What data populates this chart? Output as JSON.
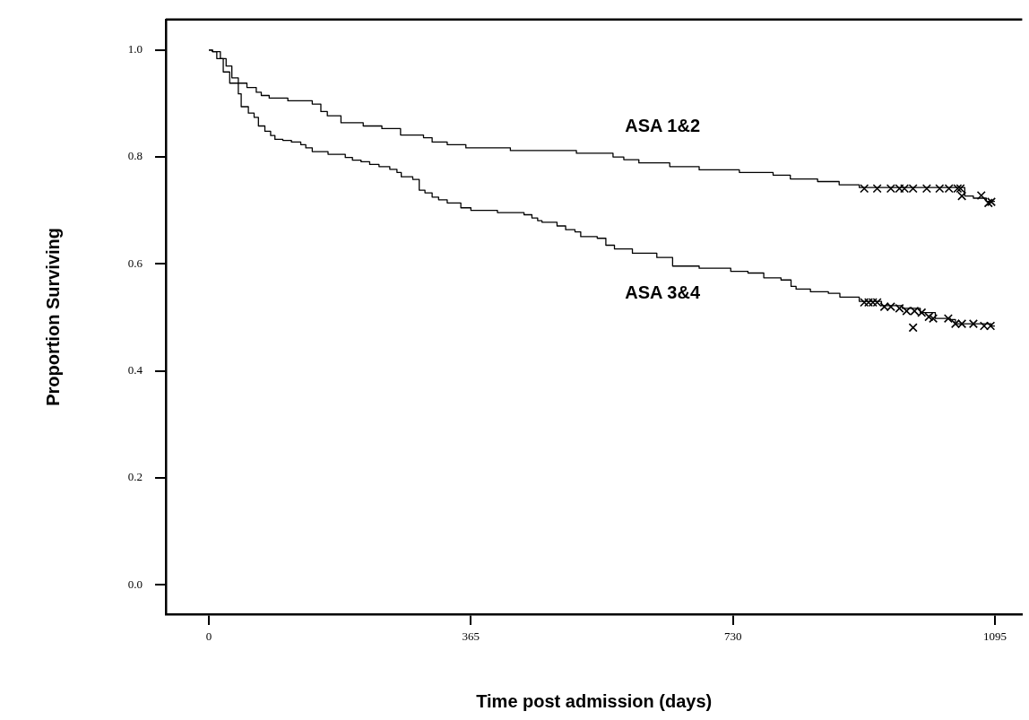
{
  "chart_data": {
    "type": "step",
    "xlabel": "Time post admission (days)",
    "ylabel": "Proportion Surviving",
    "xlim": [
      -60,
      1133
    ],
    "ylim": [
      -0.055,
      1.057
    ],
    "xticks": [
      0,
      365,
      730,
      1095
    ],
    "yticks": [
      {
        "value": 0,
        "label": "0.0"
      },
      {
        "value": 0.2,
        "label": "0.2"
      },
      {
        "value": 0.4,
        "label": "0.4"
      },
      {
        "value": 0.6,
        "label": "0.6"
      },
      {
        "value": 0.8,
        "label": "0.8"
      },
      {
        "value": 1,
        "label": "1.0"
      }
    ],
    "legend": false,
    "series": [
      {
        "name": "ASA 1&2",
        "color": "#000000",
        "x": [
          0,
          5,
          16,
          24,
          32,
          41,
          53,
          66,
          73,
          84,
          110,
          144,
          156,
          165,
          184,
          215,
          241,
          267,
          299,
          311,
          332,
          358,
          420,
          512,
          563,
          578,
          599,
          642,
          683,
          739,
          786,
          810,
          848,
          878,
          906,
          1053,
          1065,
          1083,
          1095
        ],
        "values": [
          1,
          0.997,
          0.984,
          0.97,
          0.948,
          0.938,
          0.93,
          0.921,
          0.915,
          0.91,
          0.905,
          0.899,
          0.885,
          0.877,
          0.864,
          0.858,
          0.853,
          0.841,
          0.836,
          0.828,
          0.823,
          0.817,
          0.812,
          0.807,
          0.8,
          0.795,
          0.789,
          0.782,
          0.776,
          0.771,
          0.766,
          0.759,
          0.754,
          0.748,
          0.743,
          0.727,
          0.723,
          0.717,
          0.717
        ]
      },
      {
        "name": "ASA 3&4",
        "color": "#000000",
        "x": [
          0,
          5,
          11,
          20,
          29,
          41,
          45,
          55,
          63,
          69,
          78,
          86,
          92,
          103,
          115,
          128,
          135,
          144,
          166,
          190,
          200,
          212,
          224,
          237,
          252,
          262,
          268,
          284,
          293,
          301,
          311,
          320,
          332,
          351,
          365,
          402,
          439,
          450,
          458,
          464,
          485,
          497,
          510,
          518,
          541,
          553,
          565,
          590,
          624,
          646,
          683,
          727,
          751,
          773,
          797,
          811,
          818,
          838,
          863,
          879,
          906,
          937,
          966,
          991,
          1012,
          1033,
          1040,
          1090,
          1095
        ],
        "values": [
          1,
          0.997,
          0.984,
          0.959,
          0.938,
          0.918,
          0.894,
          0.882,
          0.874,
          0.858,
          0.848,
          0.84,
          0.833,
          0.831,
          0.828,
          0.823,
          0.817,
          0.81,
          0.805,
          0.799,
          0.794,
          0.791,
          0.786,
          0.782,
          0.777,
          0.771,
          0.763,
          0.758,
          0.738,
          0.733,
          0.725,
          0.72,
          0.714,
          0.705,
          0.7,
          0.696,
          0.692,
          0.686,
          0.681,
          0.678,
          0.671,
          0.664,
          0.66,
          0.651,
          0.648,
          0.635,
          0.628,
          0.62,
          0.612,
          0.596,
          0.592,
          0.586,
          0.583,
          0.574,
          0.57,
          0.558,
          0.553,
          0.548,
          0.545,
          0.538,
          0.53,
          0.522,
          0.517,
          0.509,
          0.498,
          0.496,
          0.488,
          0.484,
          0.484
        ]
      },
      {
        "type": "scatter",
        "marker": "cross",
        "color": "#000000",
        "x": [
          913,
          931,
          950,
          962,
          969,
          981,
          1000,
          1018,
          1031,
          1043,
          1047,
          1049,
          1076,
          1086,
          1090
        ],
        "values": [
          0.741,
          0.741,
          0.741,
          0.741,
          0.741,
          0.741,
          0.741,
          0.741,
          0.741,
          0.741,
          0.741,
          0.727,
          0.728,
          0.714,
          0.716
        ]
      },
      {
        "type": "scatter",
        "marker": "cross",
        "color": "#000000",
        "x": [
          913,
          919,
          925,
          931,
          941,
          950,
          962,
          972,
          981,
          983,
          993,
          1003,
          1009,
          1030,
          1040,
          1049,
          1065,
          1080,
          1089
        ],
        "values": [
          0.528,
          0.528,
          0.528,
          0.528,
          0.52,
          0.52,
          0.517,
          0.512,
          0.481,
          0.512,
          0.509,
          0.501,
          0.498,
          0.498,
          0.488,
          0.488,
          0.488,
          0.484,
          0.484
        ]
      }
    ]
  }
}
